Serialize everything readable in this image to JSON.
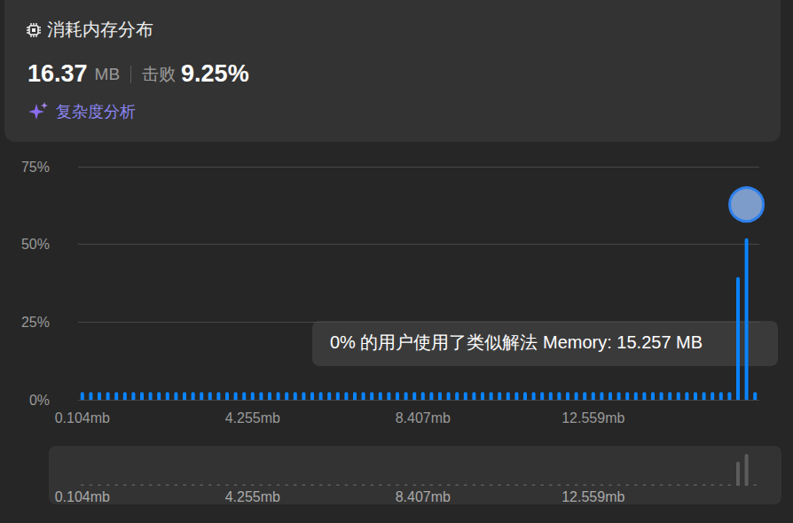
{
  "header": {
    "title": "消耗内存分布",
    "value": "16.37",
    "unit": "MB",
    "beats_label": "击败",
    "beats": "9.25%",
    "link": "复杂度分析"
  },
  "chart_data": {
    "type": "bar",
    "categories": [
      "0.104mb",
      null,
      null,
      null,
      null,
      null,
      null,
      null,
      null,
      null,
      null,
      null,
      null,
      null,
      null,
      null,
      null,
      null,
      null,
      null,
      "4.255mb",
      null,
      null,
      null,
      null,
      null,
      null,
      null,
      null,
      null,
      null,
      null,
      null,
      null,
      null,
      null,
      null,
      null,
      null,
      null,
      "8.407mb",
      null,
      null,
      null,
      null,
      null,
      null,
      null,
      null,
      null,
      null,
      null,
      null,
      null,
      null,
      null,
      null,
      null,
      null,
      null,
      "12.559mb",
      null,
      null,
      null,
      null,
      null,
      null,
      null,
      null,
      null,
      null,
      null,
      null,
      null,
      null,
      null,
      null,
      null,
      null,
      null
    ],
    "values": [
      2.5,
      2.5,
      2.5,
      2.5,
      2.5,
      2.5,
      2.5,
      2.5,
      2.5,
      2.5,
      2.5,
      2.5,
      2.5,
      2.5,
      2.5,
      2.5,
      2.5,
      2.5,
      2.5,
      2.5,
      2.5,
      2.5,
      2.5,
      2.5,
      2.5,
      2.5,
      2.5,
      2.5,
      2.5,
      2.5,
      2.5,
      2.5,
      2.5,
      2.5,
      2.5,
      2.5,
      2.5,
      2.5,
      2.5,
      2.5,
      2.5,
      2.5,
      2.5,
      2.5,
      2.5,
      2.5,
      2.5,
      2.5,
      2.5,
      2.5,
      2.5,
      2.5,
      2.5,
      2.5,
      2.5,
      2.5,
      2.5,
      2.5,
      2.5,
      2.5,
      2.5,
      2.5,
      2.5,
      2.5,
      2.5,
      2.5,
      2.5,
      2.5,
      2.5,
      2.5,
      2.5,
      2.5,
      2.5,
      2.5,
      2.5,
      2.5,
      2.5,
      39.5,
      52,
      2.5
    ],
    "color": "#0a84ff",
    "ylim": [
      0,
      75
    ],
    "yticks": [
      {
        "value": 0,
        "label": "0%"
      },
      {
        "value": 25,
        "label": "25%"
      },
      {
        "value": 50,
        "label": "50%"
      },
      {
        "value": 75,
        "label": "75%"
      }
    ],
    "grid": true,
    "annotations": [
      {
        "text": "0% 的用户使用了类似解法 Memory: 15.257 MB"
      }
    ]
  }
}
